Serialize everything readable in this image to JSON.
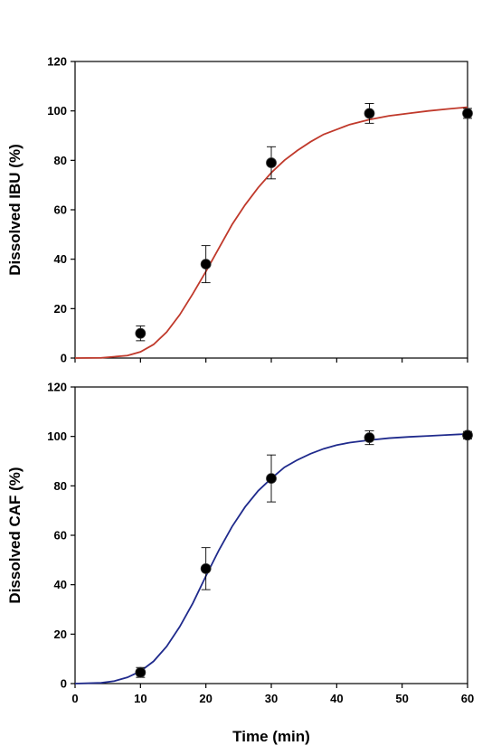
{
  "chart_data": [
    {
      "type": "scatter",
      "title": "",
      "ylabel": "Dissolved IBU (%)",
      "xlabel": "",
      "xlim": [
        0,
        60
      ],
      "ylim": [
        0,
        120
      ],
      "x_ticks": [
        0,
        10,
        20,
        30,
        40,
        50,
        60
      ],
      "y_ticks": [
        0,
        20,
        40,
        60,
        80,
        100,
        120
      ],
      "x_tick_labels_shown": false,
      "grid": false,
      "legend": "none",
      "series": [
        {
          "kind": "points",
          "x": [
            10,
            20,
            30,
            45,
            60
          ],
          "y": [
            10,
            38,
            79,
            99,
            99
          ],
          "error": [
            3,
            7.5,
            6.5,
            4,
            2
          ],
          "color": "#000000"
        },
        {
          "kind": "fit-curve",
          "x": [
            0,
            4,
            8,
            10,
            12,
            14,
            16,
            18,
            20,
            22,
            24,
            26,
            28,
            30,
            32,
            34,
            36,
            38,
            40,
            42,
            45,
            48,
            51,
            54,
            57,
            60
          ],
          "y": [
            0,
            0.1,
            1,
            2.5,
            5.5,
            10.5,
            17.5,
            26,
            35,
            44.5,
            54,
            62,
            69,
            75,
            80,
            84,
            87.5,
            90.5,
            92.5,
            94.5,
            96.5,
            98,
            99,
            100,
            100.8,
            101.5
          ],
          "color": "#c0392b"
        }
      ]
    },
    {
      "type": "scatter",
      "title": "",
      "ylabel": "Dissolved CAF (%)",
      "xlabel": "Time (min)",
      "xlim": [
        0,
        60
      ],
      "ylim": [
        0,
        120
      ],
      "x_ticks": [
        0,
        10,
        20,
        30,
        40,
        50,
        60
      ],
      "y_ticks": [
        0,
        20,
        40,
        60,
        80,
        100,
        120
      ],
      "x_tick_labels_shown": true,
      "grid": false,
      "legend": "none",
      "series": [
        {
          "kind": "points",
          "x": [
            10,
            20,
            30,
            45,
            60
          ],
          "y": [
            4.5,
            46.5,
            83,
            99.5,
            100.5
          ],
          "error": [
            2,
            8.5,
            9.5,
            2.8,
            1.5
          ],
          "color": "#000000"
        },
        {
          "kind": "fit-curve",
          "x": [
            0,
            4,
            6,
            8,
            10,
            12,
            14,
            16,
            18,
            20,
            22,
            24,
            26,
            28,
            30,
            32,
            34,
            36,
            38,
            40,
            42,
            45,
            48,
            51,
            54,
            57,
            60
          ],
          "y": [
            0,
            0.3,
            1,
            2.5,
            5,
            9,
            15,
            23,
            32.5,
            43.5,
            54,
            63.5,
            71.5,
            78,
            83,
            87.5,
            90.5,
            93,
            95,
            96.5,
            97.5,
            98.5,
            99.3,
            99.8,
            100.2,
            100.6,
            101
          ],
          "color": "#1f2a8c"
        }
      ]
    }
  ]
}
